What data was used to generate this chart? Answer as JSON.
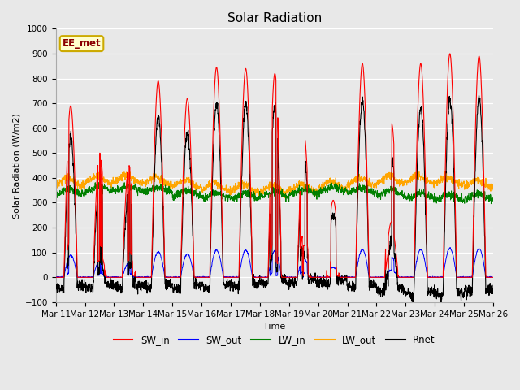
{
  "title": "Solar Radiation",
  "xlabel": "Time",
  "ylabel": "Solar Radiation (W/m2)",
  "ylim": [
    -100,
    1000
  ],
  "xtick_labels": [
    "Mar 11",
    "Mar 12",
    "Mar 13",
    "Mar 14",
    "Mar 15",
    "Mar 16",
    "Mar 17",
    "Mar 18",
    "Mar 19",
    "Mar 20",
    "Mar 21",
    "Mar 22",
    "Mar 23",
    "Mar 24",
    "Mar 25",
    "Mar 26"
  ],
  "legend_labels": [
    "SW_in",
    "SW_out",
    "LW_in",
    "LW_out",
    "Rnet"
  ],
  "legend_colors": [
    "red",
    "blue",
    "green",
    "orange",
    "black"
  ],
  "site_label": "EE_met",
  "background_color": "#e8e8e8",
  "plot_bg_color": "#e8e8e8",
  "grid_color": "white",
  "n_days": 15,
  "n_pts_per_day": 144,
  "sw_in_peaks": [
    690,
    500,
    450,
    790,
    720,
    845,
    840,
    820,
    570,
    310,
    860,
    620,
    860,
    900,
    890
  ],
  "sw_in_cloudy": [
    0.3,
    0.6,
    0.7,
    0.1,
    0.1,
    0.1,
    0.1,
    0.4,
    0.8,
    0.9,
    0.1,
    0.5,
    0.1,
    0.1,
    0.1
  ],
  "lw_in_base": 345,
  "lw_out_base": 375,
  "title_fontsize": 11,
  "label_fontsize": 8,
  "tick_fontsize": 7.5
}
